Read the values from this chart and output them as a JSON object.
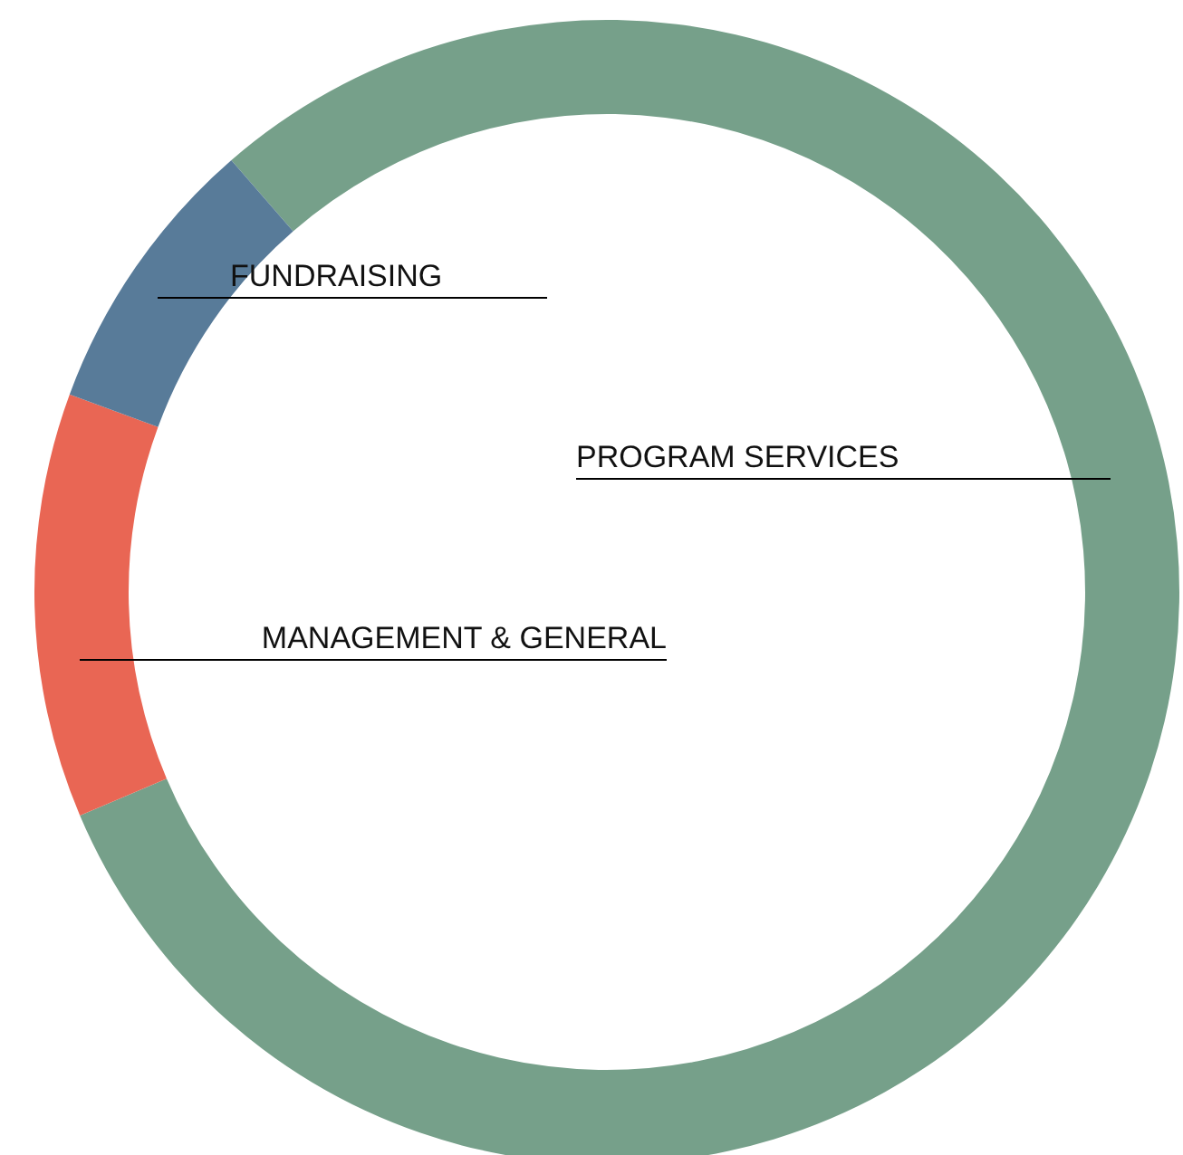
{
  "chart_data": {
    "type": "donut",
    "categories": [
      "PROGRAM SERVICES",
      "MANAGEMENT & GENERAL",
      "FUNDRAISING"
    ],
    "values": [
      80,
      12,
      8
    ],
    "colors": [
      "#76a08a",
      "#e96654",
      "#587b99"
    ]
  }
}
